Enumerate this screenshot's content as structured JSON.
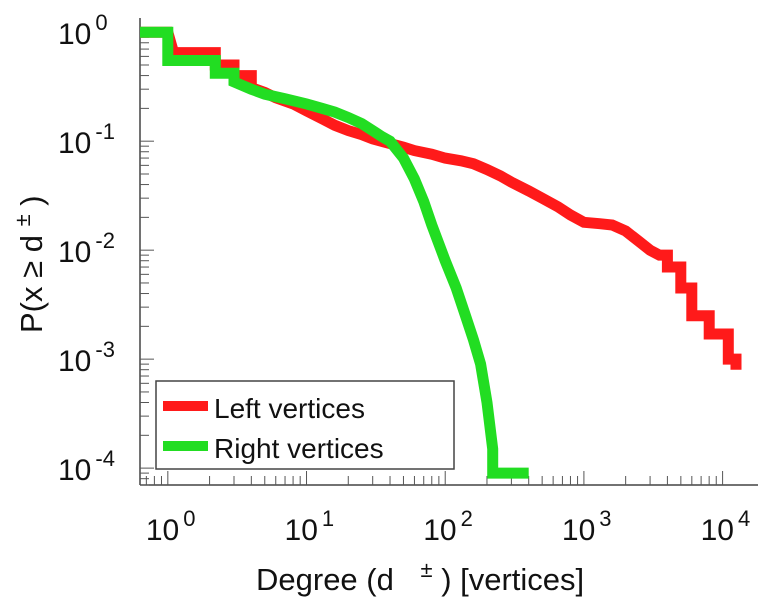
{
  "chart_data": {
    "type": "line",
    "title": "",
    "xlabel": "Degree (d",
    "xlabel_symbol": "±",
    "xlabel_suffix": ") [vertices]",
    "ylabel": "P(x ≥ d",
    "ylabel_symbol": "±",
    "ylabel_suffix": ")",
    "xscale": "log",
    "yscale": "log",
    "xlim": [
      0.63,
      18000
    ],
    "ylim": [
      7e-05,
      1.35
    ],
    "x_ticks": [
      {
        "value": 1,
        "base": "10",
        "exp": "0"
      },
      {
        "value": 10,
        "base": "10",
        "exp": "1"
      },
      {
        "value": 100,
        "base": "10",
        "exp": "2"
      },
      {
        "value": 1000,
        "base": "10",
        "exp": "3"
      },
      {
        "value": 10000,
        "base": "10",
        "exp": "4"
      }
    ],
    "y_ticks": [
      {
        "value": 1,
        "base": "10",
        "exp": "0"
      },
      {
        "value": 0.1,
        "base": "10",
        "exp": "-1"
      },
      {
        "value": 0.01,
        "base": "10",
        "exp": "-2"
      },
      {
        "value": 0.001,
        "base": "10",
        "exp": "-3"
      },
      {
        "value": 0.0001,
        "base": "10",
        "exp": "-4"
      }
    ],
    "grid": false,
    "legend_position": "bottom-left",
    "series": [
      {
        "name": "Left vertices",
        "color": "#ff1a1a",
        "x": [
          0.63,
          1,
          1.1,
          2.2,
          2.2,
          3,
          3,
          4,
          4,
          5,
          6,
          8,
          10,
          13,
          16,
          20,
          25,
          30,
          40,
          50,
          60,
          80,
          100,
          130,
          160,
          200,
          250,
          300,
          400,
          500,
          650,
          800,
          1000,
          1300,
          1600,
          2000,
          2500,
          3000,
          3500,
          4000,
          4000,
          5000,
          5000,
          6000,
          6000,
          8000,
          8000,
          11000,
          11000,
          12500,
          12500
        ],
        "y": [
          1,
          1,
          0.65,
          0.65,
          0.5,
          0.5,
          0.4,
          0.4,
          0.31,
          0.28,
          0.25,
          0.22,
          0.19,
          0.16,
          0.14,
          0.125,
          0.115,
          0.105,
          0.095,
          0.088,
          0.082,
          0.076,
          0.07,
          0.066,
          0.062,
          0.055,
          0.048,
          0.042,
          0.035,
          0.03,
          0.025,
          0.021,
          0.018,
          0.0175,
          0.017,
          0.015,
          0.012,
          0.01,
          0.009,
          0.009,
          0.007,
          0.007,
          0.0045,
          0.0045,
          0.0025,
          0.0025,
          0.0017,
          0.0017,
          0.001,
          0.001,
          0.0008
        ]
      },
      {
        "name": "Right vertices",
        "color": "#22dd22",
        "x": [
          0.63,
          1,
          1,
          2.2,
          2.2,
          3,
          3,
          4,
          5,
          7,
          10,
          13,
          16,
          20,
          25,
          30,
          35,
          40,
          50,
          60,
          70,
          80,
          100,
          120,
          140,
          160,
          180,
          200,
          220,
          220,
          400
        ],
        "y": [
          1,
          1,
          0.55,
          0.55,
          0.42,
          0.42,
          0.35,
          0.3,
          0.27,
          0.245,
          0.22,
          0.2,
          0.185,
          0.165,
          0.145,
          0.125,
          0.11,
          0.1,
          0.07,
          0.045,
          0.028,
          0.017,
          0.008,
          0.0045,
          0.0025,
          0.0015,
          0.0009,
          0.0004,
          0.00015,
          9e-05,
          9e-05
        ]
      }
    ]
  }
}
